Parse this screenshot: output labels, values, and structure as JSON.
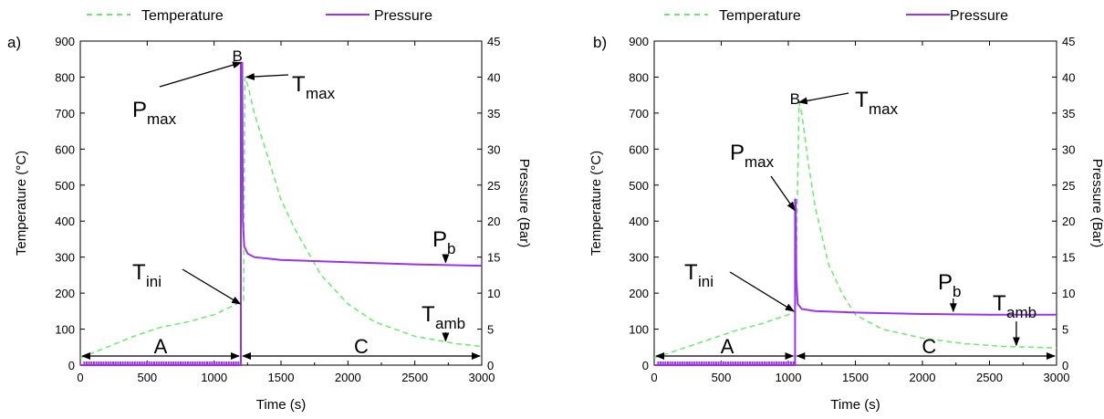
{
  "legend": {
    "temperature": "Temperature",
    "pressure": "Pressure"
  },
  "colors": {
    "temperature": "#66ee66",
    "pressure": "#9933ee",
    "axes": "#000000"
  },
  "chart_data": [
    {
      "panel_label": "a)",
      "type": "line",
      "xlabel": "Time (s)",
      "ylabel": "Temperature (°C)",
      "y2label": "Pressure (Bar)",
      "xlim": [
        0,
        3000
      ],
      "ylim": [
        0,
        900
      ],
      "y2lim": [
        0,
        45
      ],
      "xticks": [
        0,
        500,
        1000,
        1500,
        2000,
        2500,
        3000
      ],
      "yticks": [
        0,
        100,
        200,
        300,
        400,
        500,
        600,
        700,
        800,
        900
      ],
      "y2ticks": [
        0,
        5,
        10,
        15,
        20,
        25,
        30,
        35,
        40,
        45
      ],
      "series": [
        {
          "name": "Temperature",
          "axis": "left",
          "style": "dashed",
          "x": [
            0,
            200,
            400,
            600,
            800,
            1000,
            1180,
            1220,
            1230,
            1250,
            1300,
            1400,
            1500,
            1600,
            1800,
            2000,
            2200,
            2500,
            2800,
            3000
          ],
          "y": [
            20,
            50,
            80,
            105,
            120,
            140,
            172,
            180,
            800,
            780,
            700,
            580,
            460,
            380,
            250,
            170,
            120,
            80,
            60,
            52
          ]
        },
        {
          "name": "Pressure",
          "axis": "right",
          "style": "solid",
          "x": [
            0,
            1200,
            1200,
            1210,
            1215,
            1225,
            1250,
            1300,
            1500,
            2000,
            2500,
            3000
          ],
          "y": [
            0,
            0,
            42,
            42,
            20,
            16.5,
            15.5,
            15.0,
            14.6,
            14.3,
            14.0,
            13.8
          ]
        }
      ],
      "annotations": {
        "B": "B",
        "Pmax_main": "P",
        "Pmax_sub": "max",
        "Tmax_main": "T",
        "Tmax_sub": "max",
        "Tini_main": "T",
        "Tini_sub": "ini",
        "Pb_main": "P",
        "Pb_sub": "b",
        "Tamb_main": "T",
        "Tamb_sub": "amb",
        "A": "A",
        "C": "C"
      }
    },
    {
      "panel_label": "b)",
      "type": "line",
      "xlabel": "Time (s)",
      "ylabel": "Temperature (°C)",
      "y2label": "Pressure (Bar)",
      "xlim": [
        0,
        3000
      ],
      "ylim": [
        0,
        900
      ],
      "y2lim": [
        0,
        45
      ],
      "xticks": [
        0,
        500,
        1000,
        1500,
        2000,
        2500,
        3000
      ],
      "yticks": [
        0,
        100,
        200,
        300,
        400,
        500,
        600,
        700,
        800,
        900
      ],
      "y2ticks": [
        0,
        5,
        10,
        15,
        20,
        25,
        30,
        35,
        40,
        45
      ],
      "series": [
        {
          "name": "Temperature",
          "axis": "left",
          "style": "dashed",
          "x": [
            0,
            200,
            400,
            600,
            800,
            1000,
            1050,
            1060,
            1080,
            1100,
            1150,
            1200,
            1300,
            1400,
            1500,
            1700,
            2000,
            2300,
            2600,
            3000
          ],
          "y": [
            20,
            45,
            70,
            95,
            115,
            140,
            150,
            300,
            730,
            700,
            560,
            440,
            280,
            200,
            140,
            100,
            75,
            60,
            52,
            48
          ]
        },
        {
          "name": "Pressure",
          "axis": "right",
          "style": "solid",
          "x": [
            0,
            1050,
            1050,
            1055,
            1060,
            1070,
            1100,
            1200,
            1500,
            2000,
            2500,
            3000
          ],
          "y": [
            0,
            0,
            23,
            23,
            12,
            8.5,
            7.8,
            7.5,
            7.3,
            7.1,
            7.0,
            7.0
          ]
        }
      ],
      "annotations": {
        "B": "B",
        "Pmax_main": "P",
        "Pmax_sub": "max",
        "Tmax_main": "T",
        "Tmax_sub": "max",
        "Tini_main": "T",
        "Tini_sub": "ini",
        "Pb_main": "P",
        "Pb_sub": "b",
        "Tamb_main": "T",
        "Tamb_sub": "amb",
        "A": "A",
        "C": "C"
      }
    }
  ]
}
